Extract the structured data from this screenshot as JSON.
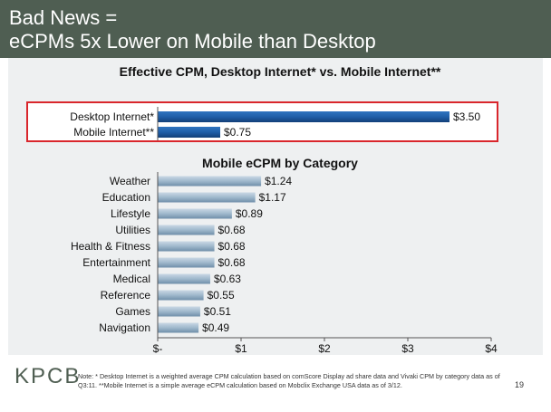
{
  "slide": {
    "title_line1": "Bad News =",
    "title_line2": "eCPMs 5x Lower on Mobile than Desktop",
    "logo": "KPCB",
    "note": "Note: * Desktop Internet is a weighted average CPM calculation based on comScore Display ad share data and Vivaki CPM by category data as of Q3:11. **Mobile Internet is a simple average eCPM calculation based on Mobclix Exchange USA data as of 3/12.",
    "page_number": "19"
  },
  "chart_data": [
    {
      "type": "bar",
      "orientation": "horizontal",
      "title": "Effective CPM, Desktop Internet* vs. Mobile Internet**",
      "categories": [
        "Desktop Internet*",
        "Mobile Internet**"
      ],
      "values": [
        3.5,
        0.75
      ],
      "labels": [
        "$3.50",
        "$0.75"
      ],
      "color": "#1f5ea8",
      "highlight_box_color": "#d9262c"
    },
    {
      "type": "bar",
      "orientation": "horizontal",
      "title": "Mobile eCPM by Category",
      "categories": [
        "Weather",
        "Education",
        "Lifestyle",
        "Utilities",
        "Health & Fitness",
        "Entertainment",
        "Medical",
        "Reference",
        "Games",
        "Navigation"
      ],
      "values": [
        1.24,
        1.17,
        0.89,
        0.68,
        0.68,
        0.68,
        0.63,
        0.55,
        0.51,
        0.49
      ],
      "labels": [
        "$1.24",
        "$1.17",
        "$0.89",
        "$0.68",
        "$0.68",
        "$0.68",
        "$0.63",
        "$0.55",
        "$0.51",
        "$0.49"
      ],
      "color": "#9fb8cc",
      "xlim": [
        0,
        4
      ],
      "x_ticks": [
        0,
        1,
        2,
        3,
        4
      ],
      "x_tick_labels": [
        "$-",
        "$1",
        "$2",
        "$3",
        "$4"
      ],
      "grid": false
    }
  ]
}
